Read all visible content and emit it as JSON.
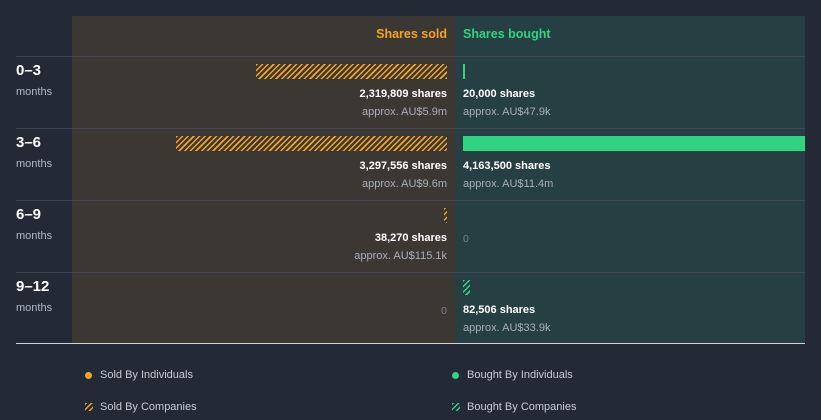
{
  "chart_data": {
    "type": "bar",
    "headers": {
      "sold": "Shares sold",
      "bought": "Shares bought"
    },
    "rows": [
      {
        "period": "0–3",
        "unit": "months",
        "sold": {
          "shares": 2319809,
          "shares_label": "2,319,809 shares",
          "approx": "approx. AU$5.9m",
          "type": "companies"
        },
        "bought": {
          "shares": 20000,
          "shares_label": "20,000 shares",
          "approx": "approx. AU$47.9k",
          "type": "individuals"
        }
      },
      {
        "period": "3–6",
        "unit": "months",
        "sold": {
          "shares": 3297556,
          "shares_label": "3,297,556 shares",
          "approx": "approx. AU$9.6m",
          "type": "companies"
        },
        "bought": {
          "shares": 4163500,
          "shares_label": "4,163,500 shares",
          "approx": "approx. AU$11.4m",
          "type": "individuals"
        }
      },
      {
        "period": "6–9",
        "unit": "months",
        "sold": {
          "shares": 38270,
          "shares_label": "38,270 shares",
          "approx": "approx. AU$115.1k",
          "type": "companies"
        },
        "bought": {
          "shares": 0,
          "zero_label": "0"
        }
      },
      {
        "period": "9–12",
        "unit": "months",
        "sold": {
          "shares": 0,
          "zero_label": "0"
        },
        "bought": {
          "shares": 82506,
          "shares_label": "82,506 shares",
          "approx": "approx. AU$33.9k",
          "type": "companies"
        }
      }
    ],
    "legend": [
      {
        "label": "Sold By Individuals",
        "color": "#f7a31f",
        "style": "solid"
      },
      {
        "label": "Bought By Individuals",
        "color": "#2ed482",
        "style": "solid"
      },
      {
        "label": "Sold By Companies",
        "color": "#f7a31f",
        "style": "hatched"
      },
      {
        "label": "Bought By Companies",
        "color": "#2ed482",
        "style": "hatched"
      }
    ]
  }
}
